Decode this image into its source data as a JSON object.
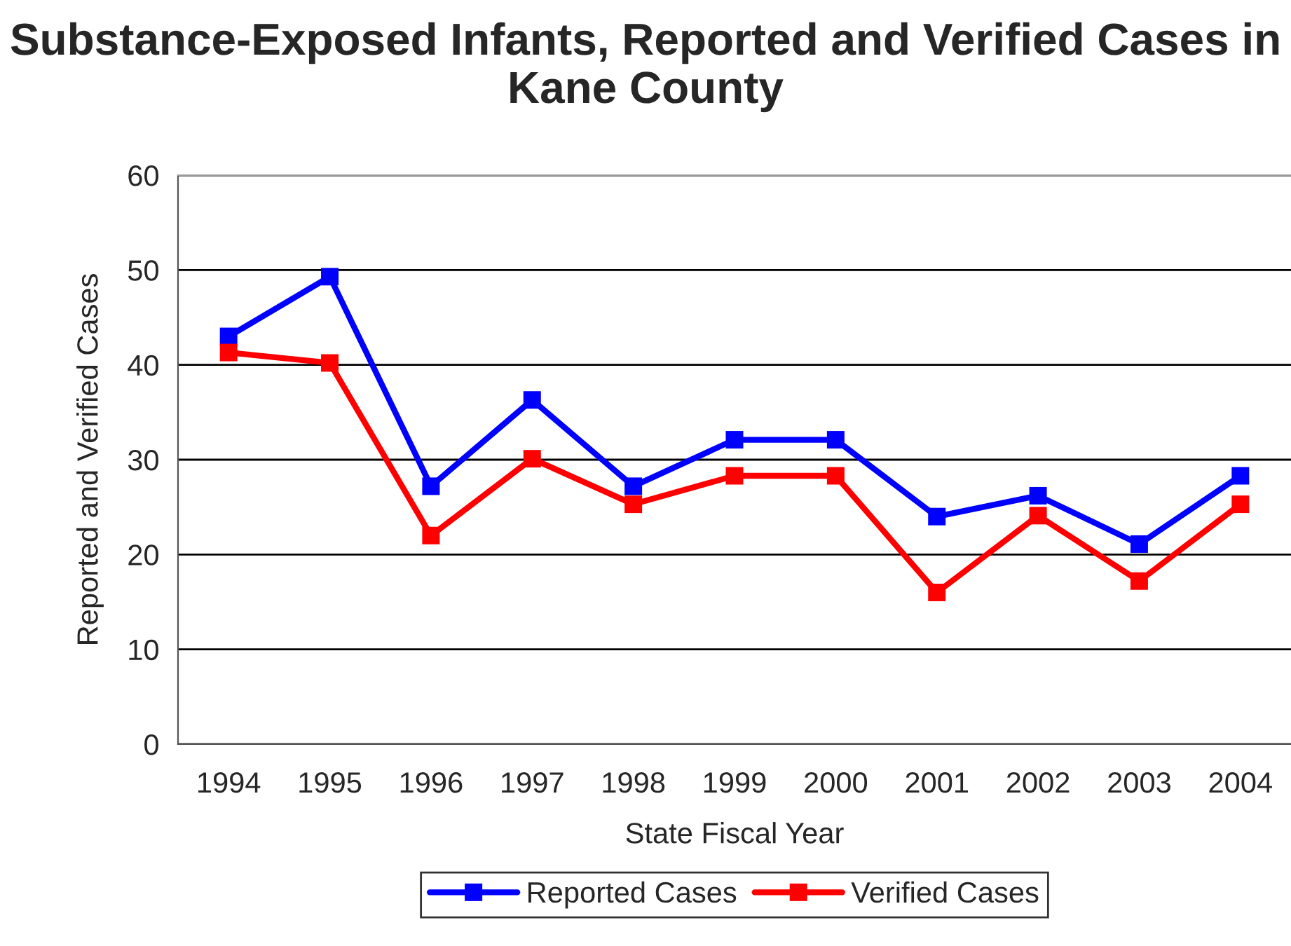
{
  "chart_data": {
    "type": "line",
    "title": "Substance-Exposed Infants, Reported and Verified Cases in Kane County",
    "xlabel": "State Fiscal Year",
    "ylabel": "Reported and Verified Cases",
    "categories": [
      "1994",
      "1995",
      "1996",
      "1997",
      "1998",
      "1999",
      "2000",
      "2001",
      "2002",
      "2003",
      "2004"
    ],
    "series": [
      {
        "name": "Reported Cases",
        "color": "#0000ff",
        "values": [
          43,
          49.3,
          27.2,
          36.3,
          27.2,
          32.1,
          32.1,
          24,
          26.2,
          21.1,
          28.3
        ]
      },
      {
        "name": "Verified Cases",
        "color": "#ff0000",
        "values": [
          41.3,
          40.2,
          22,
          30.1,
          25.3,
          28.3,
          28.3,
          16,
          24.1,
          17.2,
          25.3
        ]
      }
    ],
    "ylim": [
      0,
      60
    ],
    "yticks": [
      0,
      10,
      20,
      30,
      40,
      50,
      60
    ],
    "grid": "y",
    "legend": "bottom",
    "marker": "square",
    "line_style": "solid"
  }
}
